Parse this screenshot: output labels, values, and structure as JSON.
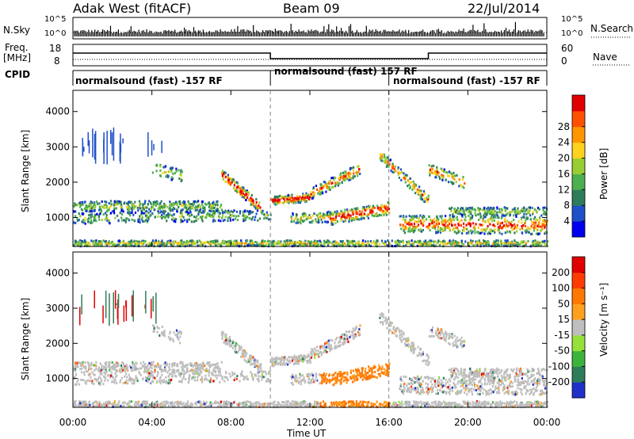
{
  "header": {
    "title": "Adak West (fitACF)",
    "beam": "Beam 09",
    "date": "22/Jul/2014"
  },
  "top_panels": {
    "nsky_label": "N.Sky",
    "nsky_ticks": [
      "10^5",
      "10^0"
    ],
    "nsearch_label": "N.Search",
    "nsearch_ticks": [
      "10^5",
      "10^0"
    ],
    "freq_label": "Freq.",
    "freq_unit": "[MHz]",
    "freq_ticks": [
      "18",
      "8"
    ],
    "nave_label": "Nave",
    "nave_ticks": [
      "60",
      "0"
    ],
    "cpid_label": "CPID",
    "cpid_segments": [
      "normalsound (fast) -157 RF",
      "normalsound (fast) 157 RF",
      "normalsound (fast) -157 RF"
    ]
  },
  "chart_data": [
    {
      "type": "heatmap",
      "name": "power",
      "ylabel": "Slant Range [km]",
      "xlabel": "",
      "x_ticks": [
        "00:00",
        "04:00",
        "08:00",
        "12:00",
        "16:00",
        "20:00",
        "00:00"
      ],
      "y_ticks": [
        1000,
        2000,
        3000,
        4000
      ],
      "ylim": [
        180,
        4600
      ],
      "xlim_hours": [
        0,
        24
      ],
      "colorbar": {
        "label": "Power [dB]",
        "ticks": [
          4,
          8,
          12,
          16,
          20,
          24,
          28
        ],
        "colors": [
          "#0000ee",
          "#1e50c8",
          "#2e7d5a",
          "#4caf50",
          "#9acd32",
          "#ffd21e",
          "#ff9600",
          "#ff5000",
          "#e10000"
        ]
      }
    },
    {
      "type": "heatmap",
      "name": "velocity",
      "ylabel": "Slant Range [km]",
      "xlabel": "Time UT",
      "x_ticks": [
        "00:00",
        "04:00",
        "08:00",
        "12:00",
        "16:00",
        "20:00",
        "00:00"
      ],
      "y_ticks": [
        1000,
        2000,
        3000,
        4000
      ],
      "ylim": [
        180,
        4600
      ],
      "xlim_hours": [
        0,
        24
      ],
      "colorbar": {
        "label": "Velocity [m s⁻¹]",
        "ticks": [
          200,
          100,
          50,
          15,
          -15,
          -50,
          -100,
          -200
        ],
        "colors": [
          "#2030c8",
          "#2e7d5a",
          "#3cb43c",
          "#96e03c",
          "#bebebe",
          "#ffa01e",
          "#ff7800",
          "#ff3c00",
          "#e10000"
        ]
      }
    }
  ]
}
